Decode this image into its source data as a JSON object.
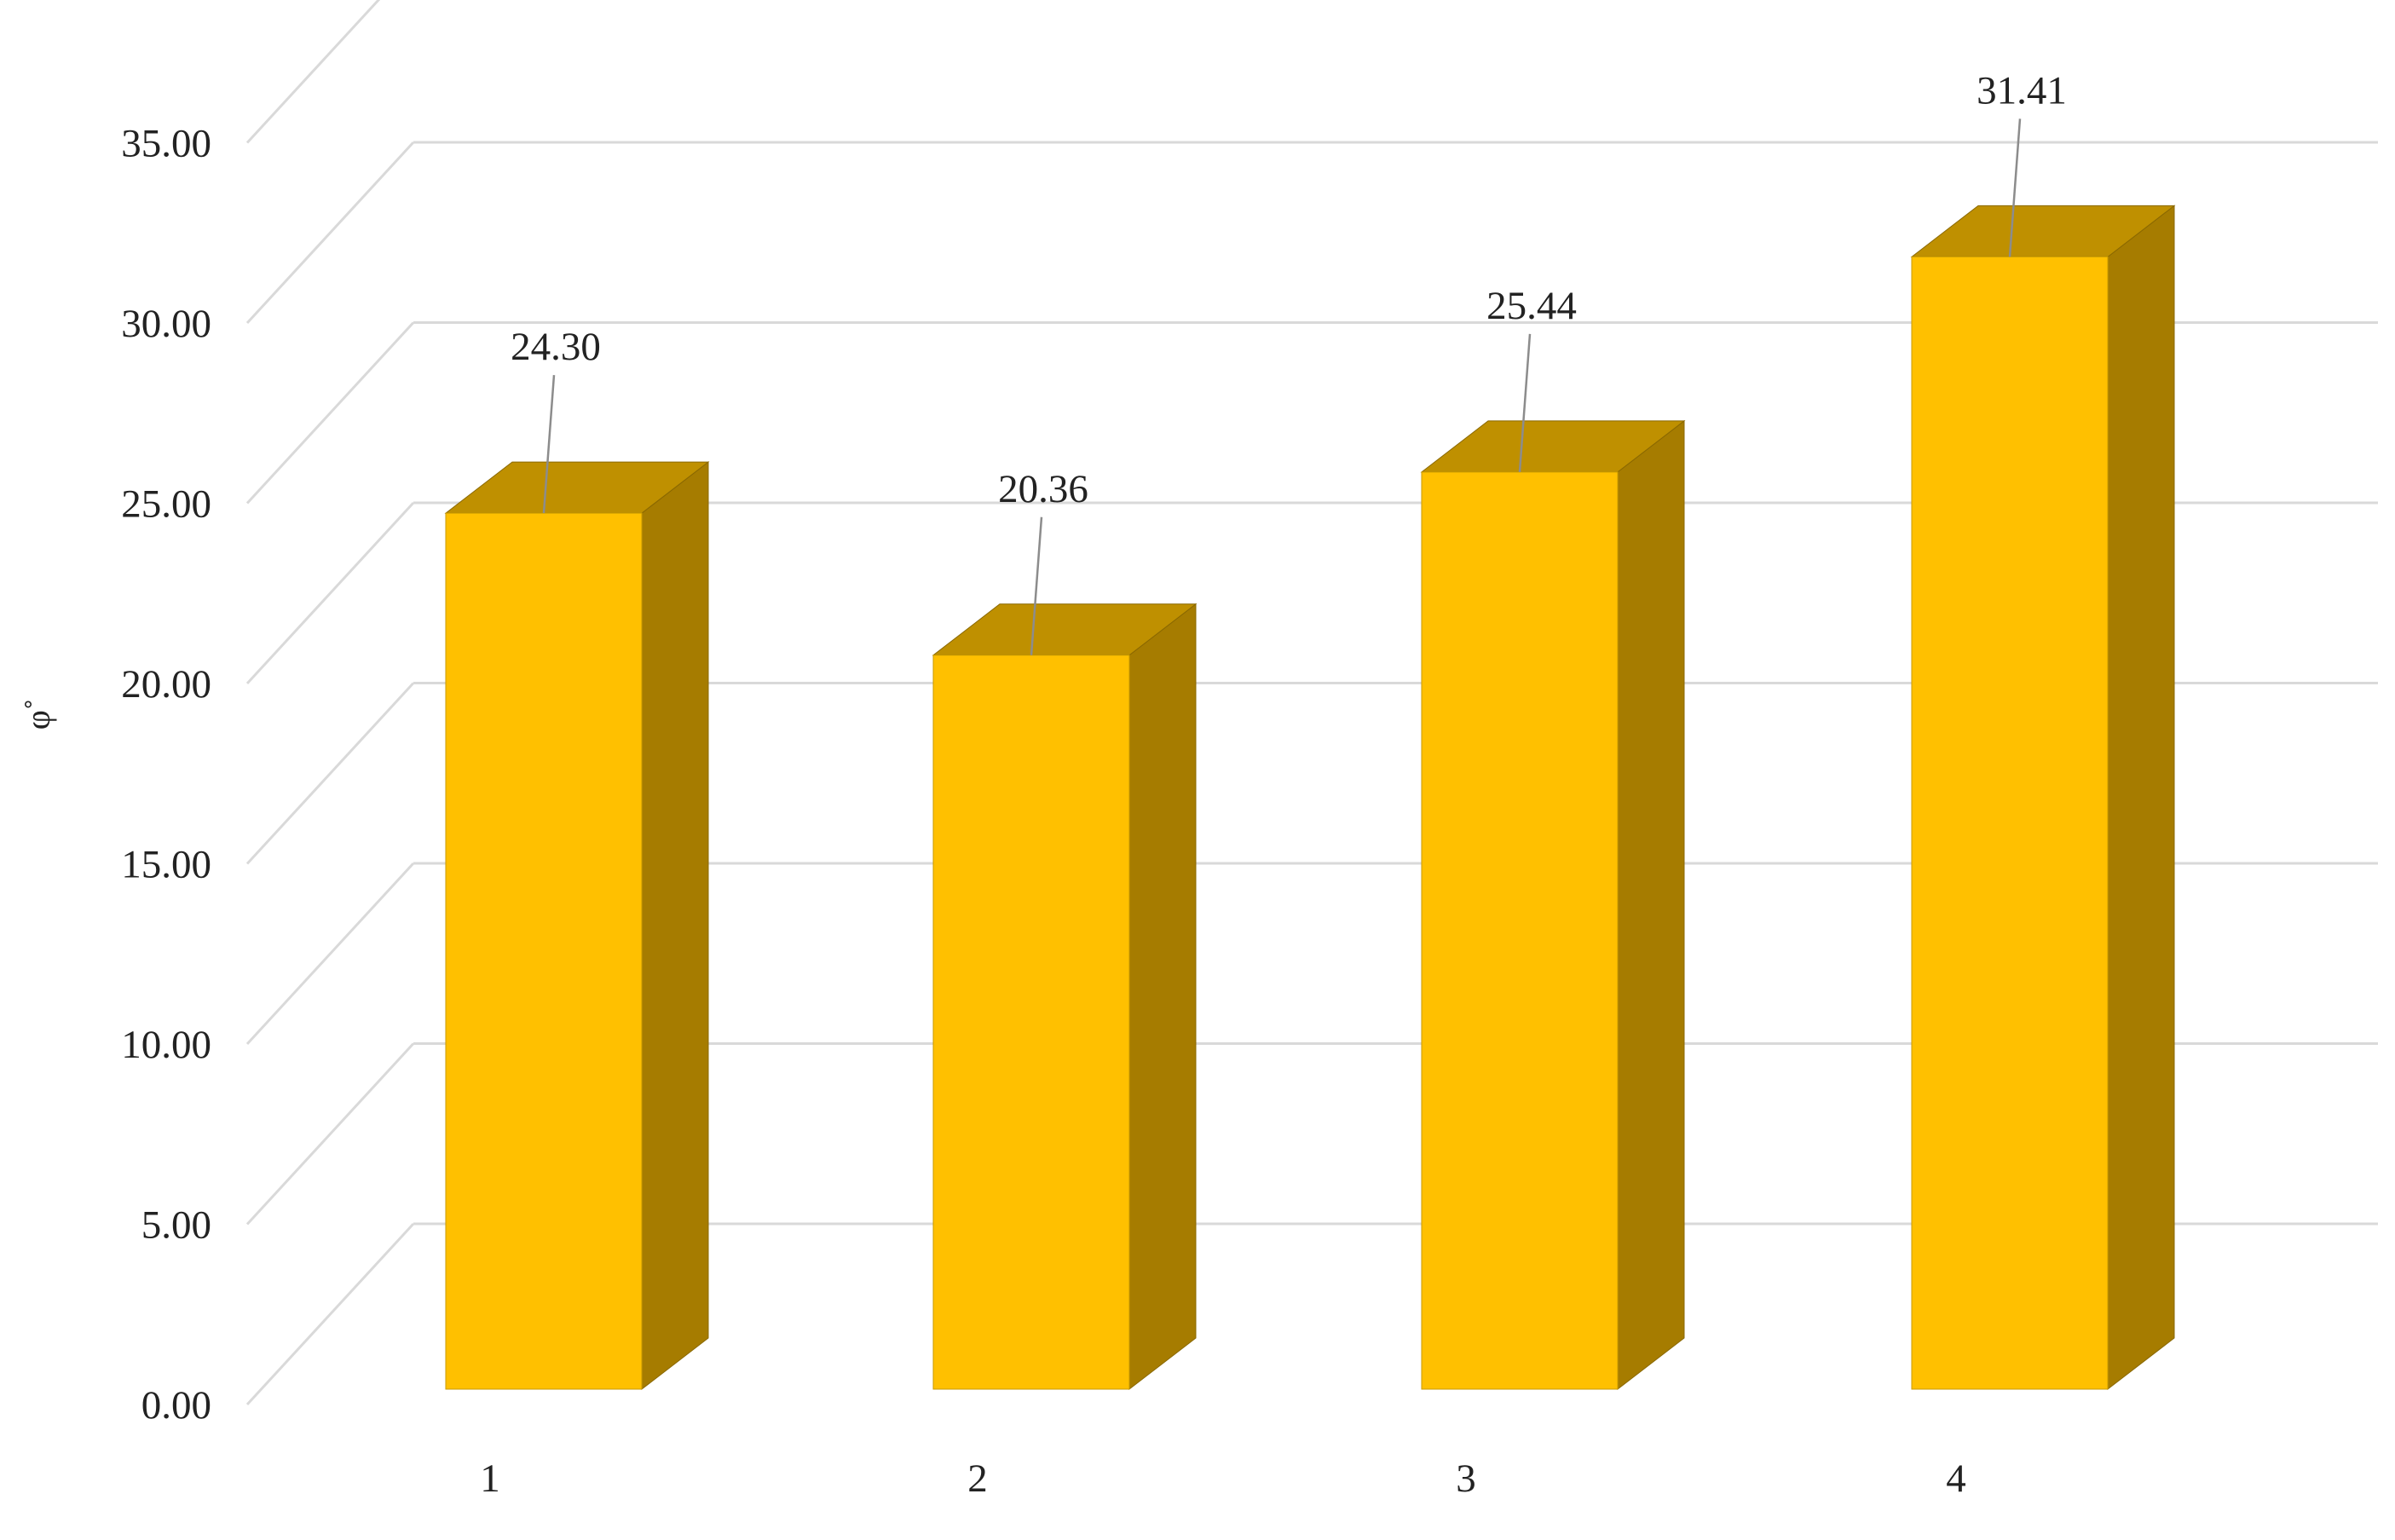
{
  "chart_data": {
    "type": "bar",
    "style": "3d-column",
    "categories": [
      "1",
      "2",
      "3",
      "4"
    ],
    "values": [
      24.3,
      20.36,
      25.44,
      31.41
    ],
    "data_labels": [
      "24.30",
      "20.36",
      "25.44",
      "31.41"
    ],
    "ylabel": "φ˚",
    "ylim": [
      0,
      35
    ],
    "y_ticks": [
      "0.00",
      "5.00",
      "10.00",
      "15.00",
      "20.00",
      "25.00",
      "30.00",
      "35.00"
    ],
    "grid": true,
    "legend": "none",
    "colors": {
      "bar_front": "#FFC000",
      "bar_top": "#BF9000",
      "bar_side": "#A67C00",
      "grid": "#D9D9D9"
    }
  }
}
